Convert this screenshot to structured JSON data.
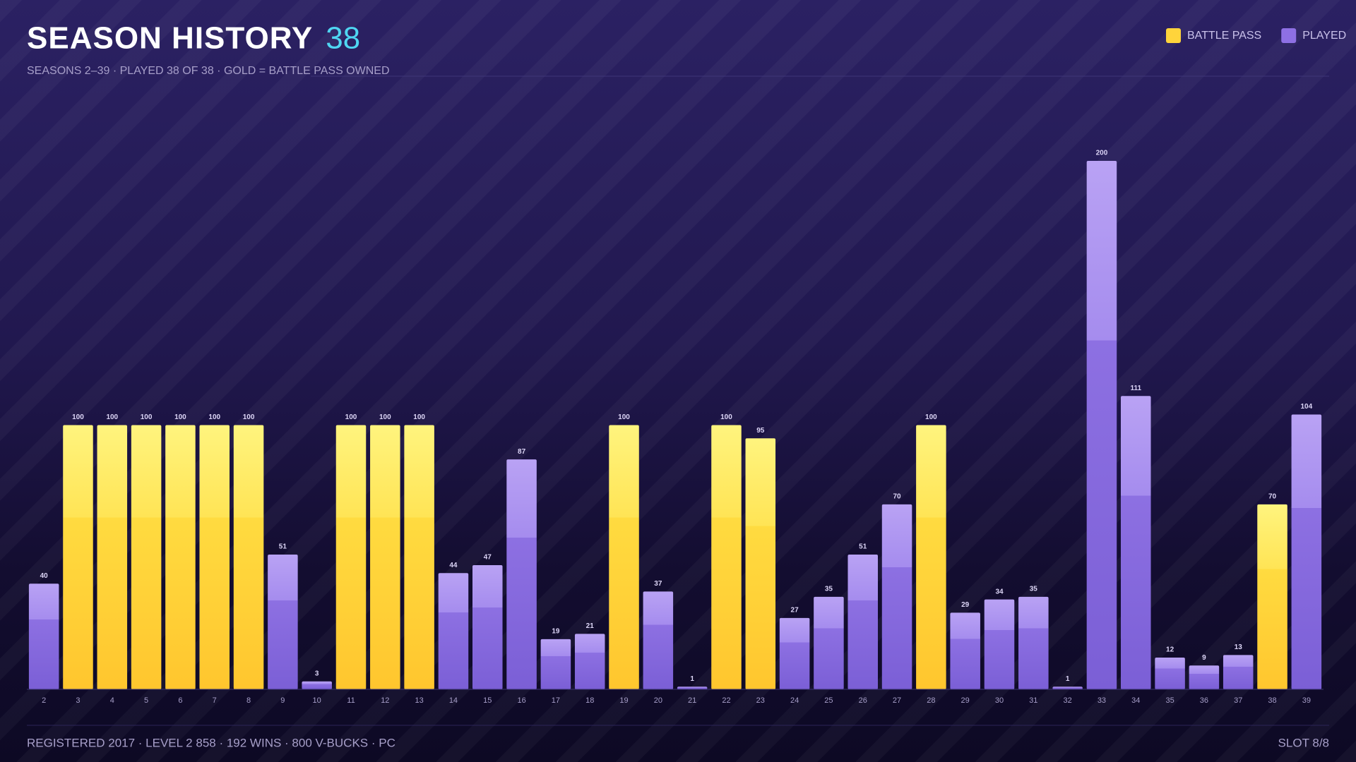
{
  "header": {
    "title": "SEASON HISTORY",
    "count": "38",
    "subtitle": "SEASONS 2–39 · PLAYED 38 OF 38 · GOLD = BATTLE PASS OWNED"
  },
  "chart_data": {
    "type": "bar",
    "categories": [
      "2",
      "3",
      "4",
      "5",
      "6",
      "7",
      "8",
      "9",
      "10",
      "11",
      "12",
      "13",
      "14",
      "15",
      "16",
      "17",
      "18",
      "19",
      "20",
      "21",
      "22",
      "23",
      "24",
      "25",
      "26",
      "27",
      "28",
      "29",
      "30",
      "31",
      "32",
      "33",
      "34",
      "35",
      "36",
      "37",
      "38",
      "39"
    ],
    "series": [
      {
        "name": "BATTLE PASS",
        "color": "#ffd43b",
        "values": [
          null,
          100,
          100,
          100,
          100,
          100,
          100,
          null,
          null,
          100,
          100,
          100,
          null,
          null,
          null,
          null,
          null,
          100,
          null,
          null,
          100,
          95,
          null,
          null,
          null,
          null,
          100,
          null,
          null,
          null,
          null,
          null,
          null,
          null,
          null,
          null,
          70,
          null
        ]
      },
      {
        "name": "PLAYED",
        "color": "#8e70e4",
        "values": [
          40,
          null,
          null,
          null,
          null,
          null,
          null,
          51,
          3,
          null,
          null,
          null,
          44,
          47,
          87,
          19,
          21,
          null,
          37,
          1,
          null,
          null,
          27,
          35,
          51,
          70,
          null,
          29,
          34,
          35,
          1,
          200,
          111,
          12,
          9,
          13,
          null,
          104
        ]
      }
    ]
  },
  "footer": {
    "info": "REGISTERED 2017 · LEVEL 2 858 · 192 WINS · 800 V-BUCKS · PC",
    "slot": "SLOT 8/8"
  }
}
